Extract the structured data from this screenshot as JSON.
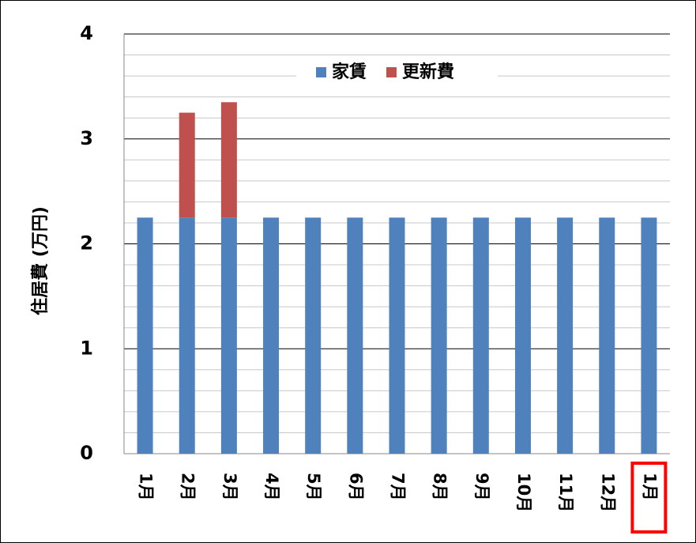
{
  "chart_data": {
    "type": "stacked_bar",
    "y_label": "住居費 (万円)",
    "categories": [
      "1月",
      "2月",
      "3月",
      "4月",
      "5月",
      "6月",
      "7月",
      "8月",
      "9月",
      "10月",
      "11月",
      "12月",
      "1月"
    ],
    "series": [
      {
        "name": "家賃",
        "color": "#4f81bd",
        "values": [
          2.25,
          2.25,
          2.25,
          2.25,
          2.25,
          2.25,
          2.25,
          2.25,
          2.25,
          2.25,
          2.25,
          2.25,
          2.25
        ]
      },
      {
        "name": "更新費",
        "color": "#c0504d",
        "values": [
          0,
          1.0,
          1.1,
          0,
          0,
          0,
          0,
          0,
          0,
          0,
          0,
          0,
          0
        ]
      }
    ],
    "ylim": [
      0,
      4
    ],
    "yticks": [
      0,
      1,
      2,
      3,
      4
    ],
    "yminorticks": [
      0.2,
      0.4,
      0.6,
      0.8,
      1.2,
      1.4,
      1.6,
      1.8,
      2.2,
      2.4,
      2.6,
      2.8,
      3.2,
      3.4,
      3.6,
      3.8
    ],
    "grid": true,
    "legend": "top"
  }
}
